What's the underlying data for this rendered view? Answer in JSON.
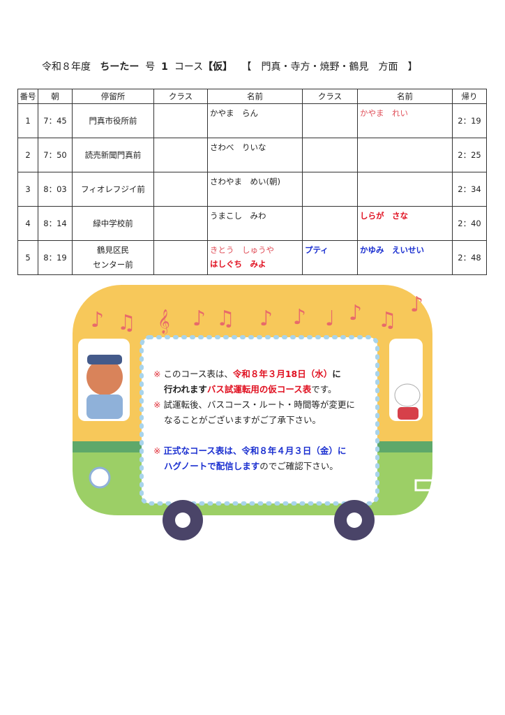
{
  "header": {
    "year": "令和８年度",
    "bus_name": "ちーたー",
    "go": "号",
    "number": "1",
    "course": "コース",
    "tentative": "【仮】",
    "area": "【　門真・寺方・焼野・鶴見　方面　】"
  },
  "table": {
    "columns": [
      "番号",
      "朝",
      "停留所",
      "クラス",
      "名前",
      "クラス",
      "名前",
      "帰り"
    ],
    "rows": [
      {
        "no": "1",
        "am": "7：45",
        "stop": "門真市役所前",
        "class1": "",
        "names1": [
          "かやま　らん"
        ],
        "class2": "",
        "names2": [
          "かやま　れい"
        ],
        "pm": "2：19"
      },
      {
        "no": "2",
        "am": "7：50",
        "stop": "読売新聞門真前",
        "class1": "",
        "names1": [
          "さわべ　りいな"
        ],
        "class2": "",
        "names2": [],
        "pm": "2：25"
      },
      {
        "no": "3",
        "am": "8：03",
        "stop": "フィオレフジイ前",
        "class1": "",
        "names1": [
          "さわやま　めい(朝)"
        ],
        "class2": "",
        "names2": [],
        "pm": "2：34"
      },
      {
        "no": "4",
        "am": "8：14",
        "stop": "緑中学校前",
        "class1": "",
        "names1": [
          "うまこし　みわ"
        ],
        "class2": "",
        "names2": [
          "しらが　さな"
        ],
        "pm": "2：40"
      },
      {
        "no": "5",
        "am": "8：19",
        "stop_lines": [
          "鶴見区民",
          "センター前"
        ],
        "class1": "",
        "names1": [
          "きとう　しゅうや",
          "はしぐち　みよ"
        ],
        "class2": "プティ",
        "names2": [
          "かゆみ　えいせい"
        ],
        "pm": "2：48"
      }
    ]
  },
  "notes": {
    "mark": "※",
    "n1a": "このコース表は、",
    "n1b": "令和８年３月18日（水）",
    "n1c": "に",
    "n1d": "行われます",
    "n1e": "バス試運転用の仮コース表",
    "n1f": "です。",
    "n2a": "試運転後、バスコース・ルート・時間等が変更に",
    "n2b": "なることがございますがご了承下さい。",
    "n3a": "正式なコース表は、令和８年４月３日（金）に",
    "n3b": "ハグノートで配信します",
    "n3c": "のでご確認下さい。"
  },
  "colors": {
    "bus_yellow": "#f7c85a",
    "bus_green": "#9ccf66",
    "stripe": "#5ea86a",
    "wheel": "#4a4468",
    "note_red": "#e01020",
    "note_blue": "#1a2fd0"
  }
}
